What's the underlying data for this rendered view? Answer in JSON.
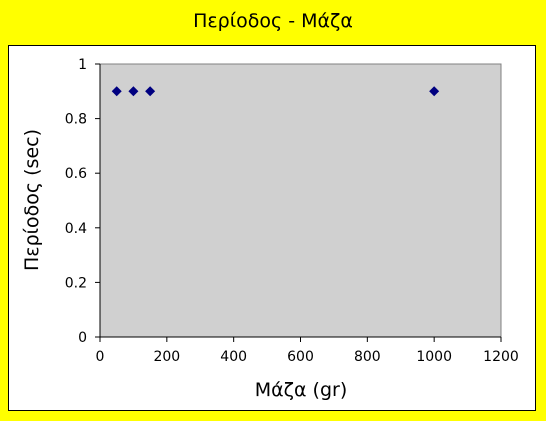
{
  "window": {
    "title": "Περίοδος - Μάζα"
  },
  "colors": {
    "page_background": "#ffff00",
    "chart_background": "#ffffff",
    "plot_area": "#d0d0d0",
    "marker": "#000080"
  },
  "chart_data": {
    "type": "scatter",
    "title": "Περίοδος - Μάζα",
    "xlabel": "Μάζα (gr)",
    "ylabel": "Περίοδος (sec)",
    "xlim": [
      0,
      1200
    ],
    "ylim": [
      0,
      1
    ],
    "xticks": [
      0,
      200,
      400,
      600,
      800,
      1000,
      1200
    ],
    "yticks": [
      0,
      0.2,
      0.4,
      0.6,
      0.8,
      1
    ],
    "xtick_labels": [
      "0",
      "200",
      "400",
      "600",
      "800",
      "1000",
      "1200"
    ],
    "ytick_labels": [
      "0",
      "0.2",
      "0.4",
      "0.6",
      "0.8",
      "1"
    ],
    "grid": false,
    "legend": "none",
    "marker": "diamond",
    "series": [
      {
        "x": [
          50,
          100,
          150,
          1000
        ],
        "y": [
          0.9,
          0.9,
          0.9,
          0.9
        ]
      }
    ]
  }
}
